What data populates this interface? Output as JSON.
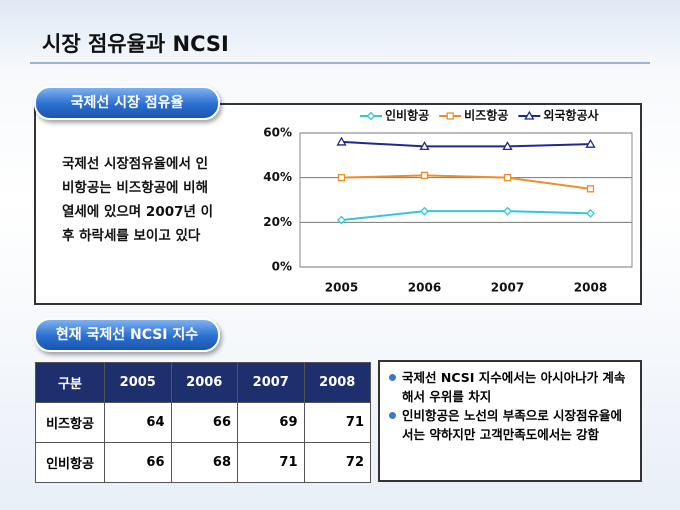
{
  "title": "시장 점유율과 NCSI",
  "section1": {
    "label": "국제선 시장 점유율",
    "text": [
      "국제선 시장점유율에서 인",
      "비항공는 비즈항공에 비해",
      "열세에 있으며 2007년 이",
      "후 하락세를 보이고 있다"
    ]
  },
  "chart_data": {
    "type": "line",
    "categories": [
      "2005",
      "2006",
      "2007",
      "2008"
    ],
    "series": [
      {
        "name": "인비항공",
        "color": "#33c6dd",
        "marker": "diamond",
        "values": [
          21,
          25,
          25,
          24
        ]
      },
      {
        "name": "비즈항공",
        "color": "#e8902a",
        "marker": "square",
        "values": [
          40,
          41,
          40,
          35
        ]
      },
      {
        "name": "외국항공사",
        "color": "#1f2a8f",
        "marker": "triangle",
        "values": [
          56,
          54,
          54,
          55
        ]
      }
    ],
    "ylim": [
      0,
      60
    ],
    "yticks": [
      {
        "value": 0,
        "label": "0%"
      },
      {
        "value": 20,
        "label": "20%"
      },
      {
        "value": 40,
        "label": "40%"
      },
      {
        "value": 60,
        "label": "60%"
      }
    ],
    "grid": true,
    "legend": "top"
  },
  "section2": {
    "label": "현재 국제선 NCSI 지수",
    "table": {
      "header": [
        "구분",
        "2005",
        "2006",
        "2007",
        "2008"
      ],
      "rows": [
        [
          "비즈항공",
          64,
          66,
          69,
          71
        ],
        [
          "인비항공",
          66,
          68,
          71,
          72
        ]
      ]
    },
    "bullets": [
      "국제선 NCSI 지수에서는 아시아나가 계속해서 우위를 차지",
      "인비항공은 노선의 부족으로 시장점유율에서는 약하지만 고객만족도에서는 강함"
    ]
  }
}
